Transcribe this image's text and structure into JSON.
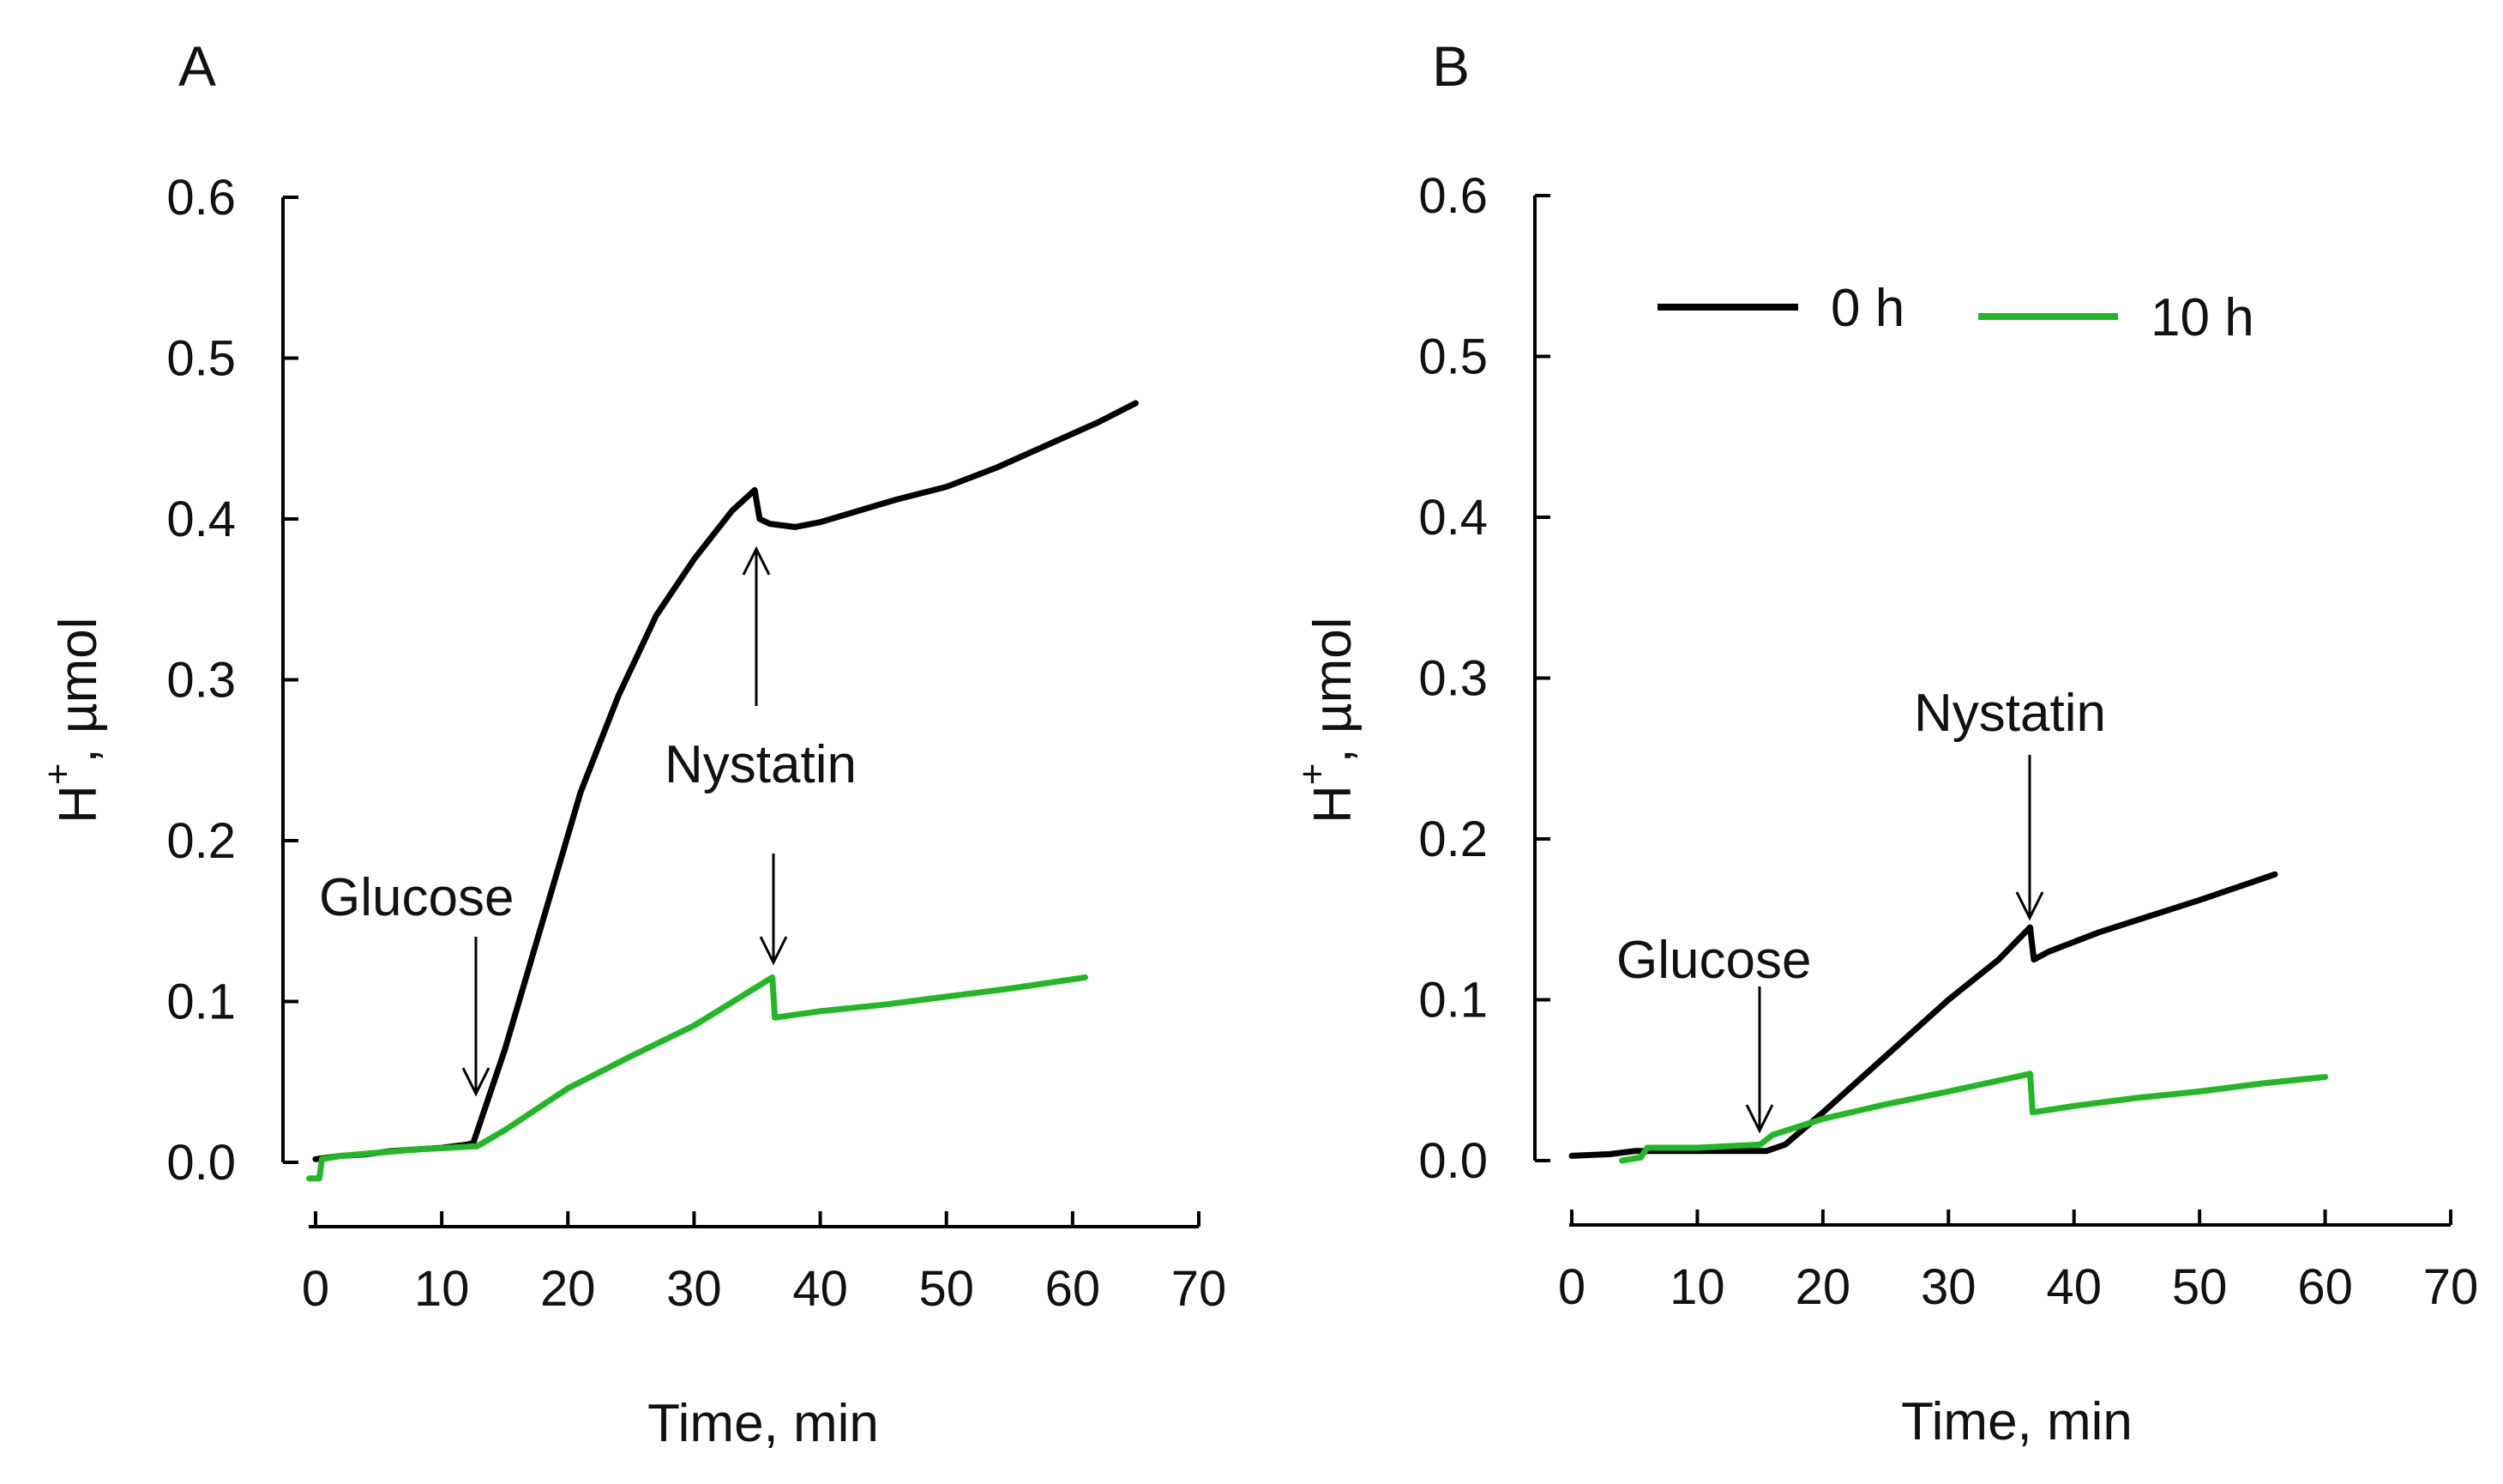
{
  "chart_data": [
    {
      "type": "line",
      "panel_label": "A",
      "xlabel": "Time, min",
      "ylabel_main": "H",
      "ylabel_sup": "+",
      "ylabel_rest": ", µmol",
      "xlim": [
        0,
        70
      ],
      "ylim": [
        0,
        0.6
      ],
      "xticks": [
        0,
        10,
        20,
        30,
        40,
        50,
        60,
        70
      ],
      "yticks": [
        "0.0",
        "0.1",
        "0.2",
        "0.3",
        "0.4",
        "0.5",
        "0.6"
      ],
      "series": [
        {
          "name": "0 h",
          "color": "#000000",
          "x": [
            0,
            2,
            4,
            6,
            8,
            10,
            12,
            12.5,
            15,
            18,
            21,
            24,
            27,
            30,
            33,
            34.8,
            35.2,
            36,
            38,
            40,
            43,
            46,
            50,
            54,
            58,
            62,
            65
          ],
          "y": [
            0.002,
            0.004,
            0.005,
            0.007,
            0.008,
            0.009,
            0.011,
            0.012,
            0.07,
            0.15,
            0.23,
            0.29,
            0.34,
            0.375,
            0.405,
            0.418,
            0.4,
            0.397,
            0.395,
            0.398,
            0.405,
            0.412,
            0.42,
            0.432,
            0.446,
            0.46,
            0.472
          ]
        },
        {
          "name": "10 h",
          "color": "#22b727",
          "x": [
            -0.5,
            0.3,
            0.5,
            2,
            5,
            8,
            12.8,
            15,
            20,
            25,
            30,
            36.2,
            36.4,
            40,
            45,
            50,
            55,
            61
          ],
          "y": [
            -0.01,
            -0.01,
            0.002,
            0.004,
            0.006,
            0.008,
            0.01,
            0.02,
            0.046,
            0.066,
            0.085,
            0.115,
            0.09,
            0.094,
            0.098,
            0.103,
            0.108,
            0.115
          ]
        }
      ],
      "annotations": [
        {
          "text": "Glucose",
          "x": 12.8,
          "y": 0.01
        },
        {
          "text": "Nystatin",
          "x": 35.5,
          "y": 0.4
        }
      ]
    },
    {
      "type": "line",
      "panel_label": "B",
      "xlabel": "Time, min",
      "ylabel_main": "H",
      "ylabel_sup": "+",
      "ylabel_rest": ", µmol",
      "xlim": [
        0,
        70
      ],
      "ylim": [
        0,
        0.6
      ],
      "xticks": [
        0,
        10,
        20,
        30,
        40,
        50,
        60,
        70
      ],
      "yticks": [
        "0.0",
        "0.1",
        "0.2",
        "0.3",
        "0.4",
        "0.5",
        "0.6"
      ],
      "legend": {
        "position": "top-left",
        "entries": [
          "0 h",
          "10 h"
        ]
      },
      "series": [
        {
          "name": "0 h",
          "color": "#000000",
          "x": [
            0,
            3,
            5,
            8,
            12,
            15.5,
            17,
            20,
            25,
            30,
            34,
            36.5,
            36.8,
            38,
            42,
            46,
            50,
            53,
            56
          ],
          "y": [
            0.003,
            0.004,
            0.006,
            0.006,
            0.006,
            0.006,
            0.01,
            0.03,
            0.065,
            0.1,
            0.125,
            0.145,
            0.125,
            0.13,
            0.142,
            0.152,
            0.162,
            0.17,
            0.178
          ]
        },
        {
          "name": "10 h",
          "color": "#22b727",
          "x": [
            4,
            5.5,
            6,
            10,
            15,
            16,
            20,
            25,
            30,
            36.5,
            36.7,
            40,
            45,
            50,
            55,
            60
          ],
          "y": [
            0.0,
            0.002,
            0.008,
            0.008,
            0.01,
            0.016,
            0.026,
            0.035,
            0.043,
            0.054,
            0.03,
            0.034,
            0.039,
            0.043,
            0.048,
            0.052
          ]
        }
      ],
      "annotations": [
        {
          "text": "Glucose",
          "x": 15,
          "y": 0.01
        },
        {
          "text": "Nystatin",
          "x": 36.5,
          "y": 0.145
        }
      ]
    }
  ]
}
